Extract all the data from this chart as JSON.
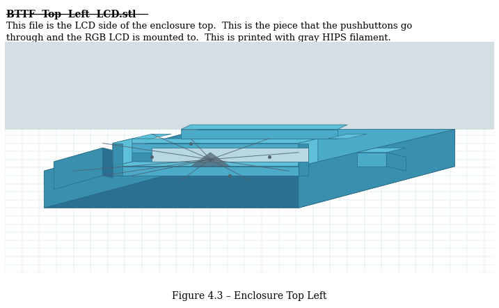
{
  "title": "BTTF  Top  Left  LCD.stl",
  "body_text": "This file is the LCD side of the enclosure top.  This is the piece that the pushbuttons go\nthrough and the RGB LCD is mounted to.  This is printed with gray HIPS filament.",
  "caption": "Figure 4.3 – Enclosure Top Left",
  "bg_color": "#ffffff",
  "image_bg_color": "#cde0e8",
  "grid_color": "#a8cfd8",
  "upper_bg_color": "#d4dfe4",
  "object_color": "#4aaac8",
  "object_mid": "#3890ae",
  "object_dark": "#2a7090",
  "object_light": "#5ec0d8",
  "support_color": "#506070",
  "edge_color": "#2a6a84",
  "title_fontsize": 10,
  "body_fontsize": 9.5,
  "caption_fontsize": 10
}
